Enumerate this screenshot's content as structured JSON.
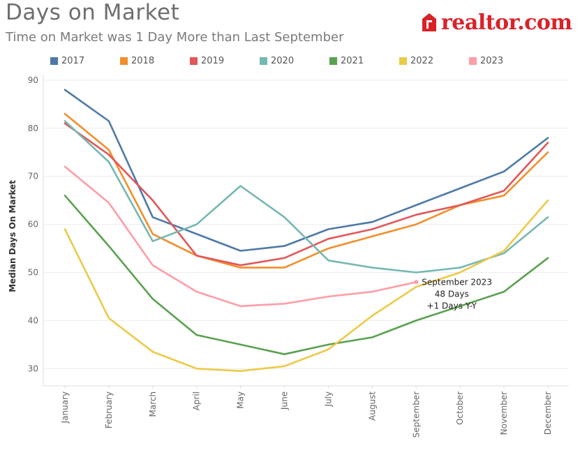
{
  "header": {
    "title": "Days on Market",
    "subtitle": "Time on Market was 1 Day More than Last September",
    "logo_text": "realtor.com"
  },
  "chart_data": {
    "type": "line",
    "title": "Days on Market",
    "subtitle": "Time on Market was 1 Day More than Last September",
    "xlabel": "",
    "ylabel": "Median Days On Market",
    "ylim": [
      27,
      91
    ],
    "yticks": [
      30,
      40,
      50,
      60,
      70,
      80,
      90
    ],
    "categories": [
      "January",
      "February",
      "March",
      "April",
      "May",
      "June",
      "July",
      "August",
      "September",
      "October",
      "November",
      "December"
    ],
    "series": [
      {
        "name": "2017",
        "color": "#4e79a7",
        "values": [
          88,
          81.5,
          61.5,
          58,
          54.5,
          55.5,
          59,
          60.5,
          64,
          67.5,
          71,
          78
        ]
      },
      {
        "name": "2018",
        "color": "#f28e2b",
        "values": [
          83,
          75.5,
          58,
          53.5,
          51,
          51,
          55,
          57.5,
          60,
          64,
          66,
          75
        ]
      },
      {
        "name": "2019",
        "color": "#e15759",
        "values": [
          81,
          74.5,
          65,
          53.5,
          51.5,
          53,
          57,
          59,
          62,
          64,
          67,
          77
        ]
      },
      {
        "name": "2020",
        "color": "#76b7b2",
        "values": [
          81.5,
          73,
          56.5,
          60,
          68,
          61.5,
          52.5,
          51,
          50,
          51,
          54,
          61.5
        ]
      },
      {
        "name": "2021",
        "color": "#59a14f",
        "values": [
          66,
          55.5,
          44.5,
          37,
          35,
          33,
          35,
          36.5,
          40,
          43,
          46,
          53
        ]
      },
      {
        "name": "2022",
        "color": "#edc948",
        "values": [
          59,
          40.5,
          33.5,
          30,
          29.5,
          30.5,
          34,
          41,
          47,
          50,
          54.5,
          65
        ]
      },
      {
        "name": "2023",
        "color": "#ff9da7",
        "values": [
          72,
          64.5,
          51.5,
          46,
          43,
          43.5,
          45,
          46,
          48,
          null,
          null,
          null
        ]
      }
    ],
    "annotation": {
      "series": "2023",
      "category": "September",
      "lines": [
        "September 2023",
        "48 Days",
        "+1 Days Y-Y"
      ]
    },
    "legend": "top"
  }
}
